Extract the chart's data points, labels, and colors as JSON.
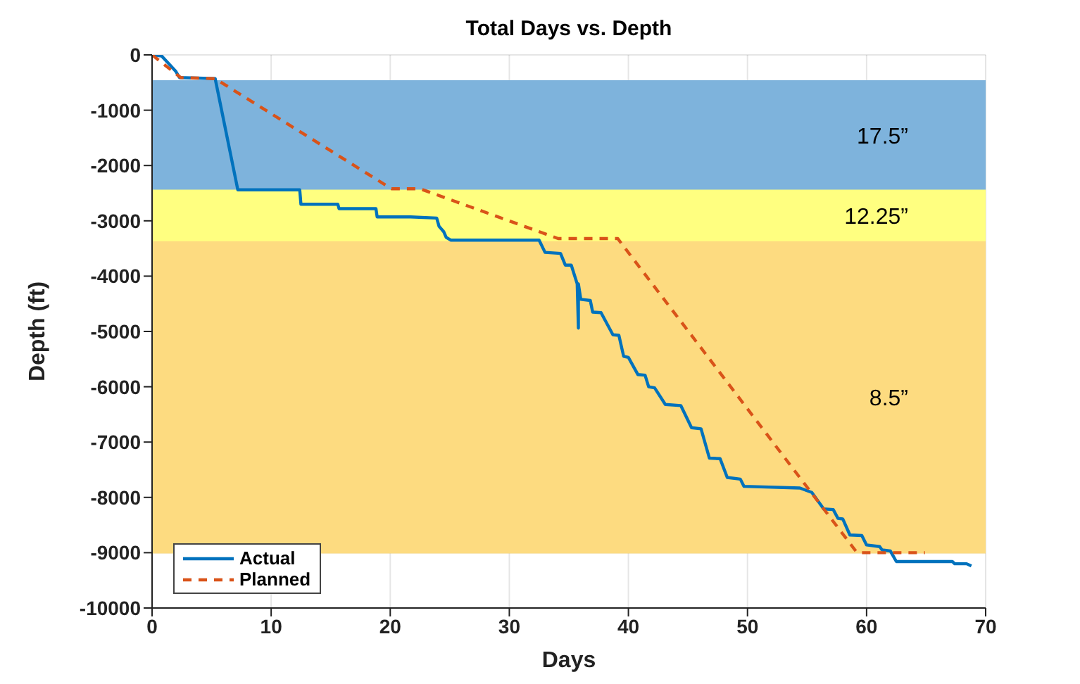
{
  "chart_data": {
    "type": "line",
    "title": "Total Days vs. Depth",
    "xlabel": "Days",
    "ylabel": "Depth (ft)",
    "xlim": [
      0,
      70
    ],
    "xticks": [
      0,
      10,
      20,
      30,
      40,
      50,
      60,
      70
    ],
    "ylim": [
      -10000,
      0
    ],
    "yticks": [
      -10000,
      -9000,
      -8000,
      -7000,
      -6000,
      -5000,
      -4000,
      -3000,
      -2000,
      -1000,
      0
    ],
    "grid": true,
    "legend": "bottom left",
    "bands": [
      {
        "axis": "y",
        "from": -2450,
        "to": -470,
        "label": "17.5”",
        "color": "#7eb3dc"
      },
      {
        "axis": "y",
        "from": -3380,
        "to": -2450,
        "label": "12.25”",
        "color": "#ffff80"
      },
      {
        "axis": "y",
        "from": -9000,
        "to": -3380,
        "label": "8.5”",
        "color": "#fddb80"
      }
    ],
    "series": [
      {
        "name": "Actual",
        "color": "#0072bd",
        "line_style": "solid",
        "x": [
          0,
          0.8,
          2,
          2.3,
          5.3,
          7.2,
          12.4,
          12.5,
          15.6,
          15.7,
          18.8,
          18.9,
          21.7,
          23.9,
          24.1,
          24.5,
          24.7,
          25.1,
          32.5,
          33.0,
          34.3,
          34.7,
          35.2,
          35.7,
          35.8,
          35.8,
          36.0,
          36.8,
          37.0,
          37.7,
          38.7,
          39.2,
          39.6,
          40.0,
          40.8,
          41.4,
          41.7,
          42.2,
          43.1,
          44.4,
          45.3,
          46.1,
          46.8,
          47.7,
          48.3,
          49.4,
          49.7,
          54.4,
          55.4,
          56.4,
          57.2,
          57.6,
          58.0,
          58.6,
          59.6,
          60.0,
          61.1,
          61.3,
          62.0,
          62.5,
          67.2,
          67.4,
          68.4,
          68.8
        ],
        "values": [
          0,
          -20,
          -300,
          -410,
          -430,
          -2440,
          -2440,
          -2700,
          -2700,
          -2780,
          -2780,
          -2930,
          -2930,
          -2950,
          -3100,
          -3200,
          -3300,
          -3350,
          -3350,
          -3570,
          -3590,
          -3800,
          -3800,
          -4140,
          -4940,
          -4140,
          -4420,
          -4440,
          -4650,
          -4660,
          -5060,
          -5070,
          -5450,
          -5470,
          -5780,
          -5790,
          -6000,
          -6020,
          -6320,
          -6340,
          -6740,
          -6760,
          -7290,
          -7300,
          -7640,
          -7670,
          -7800,
          -7830,
          -7910,
          -8210,
          -8220,
          -8380,
          -8390,
          -8680,
          -8690,
          -8860,
          -8890,
          -8950,
          -8970,
          -9160,
          -9160,
          -9200,
          -9200,
          -9240
        ]
      },
      {
        "name": "Planned",
        "color": "#d95319",
        "line_style": "dashed",
        "x": [
          0,
          2.4,
          5.3,
          20.1,
          22.5,
          34.1,
          39.1,
          59.2,
          64.9
        ],
        "values": [
          0,
          -410,
          -430,
          -2420,
          -2420,
          -3320,
          -3320,
          -9000,
          -9000
        ]
      }
    ]
  }
}
